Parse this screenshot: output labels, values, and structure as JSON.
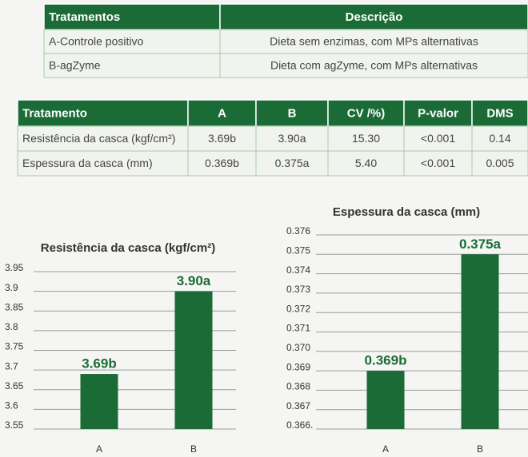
{
  "tables": {
    "treatments": {
      "header": [
        "Tratamentos",
        "Descrição"
      ],
      "rows": [
        [
          "A-Controle positivo",
          "Dieta sem enzimas, com MPs alternativas"
        ],
        [
          "B-agZyme",
          "Dieta com agZyme, com MPs alternativas"
        ]
      ]
    },
    "results": {
      "header": [
        "Tratamento",
        "A",
        "B",
        "CV /%)",
        "P-valor",
        "DMS"
      ],
      "rows": [
        [
          "Resistência da casca (kgf/cm²)",
          "3.69b",
          "3.90a",
          "15.30",
          "<0.001",
          "0.14"
        ],
        [
          "Espessura da casca (mm)",
          "0.369b",
          "0.375a",
          "5.40",
          "<0.001",
          "0.005"
        ]
      ]
    }
  },
  "chart_data": [
    {
      "type": "bar",
      "title": "Resistência da casca (kgf/cm²)",
      "categories": [
        "A",
        "B"
      ],
      "values": [
        3.69,
        3.9
      ],
      "value_labels": [
        "3.69b",
        "3.90a"
      ],
      "color": "#1b6b36",
      "ylim": [
        3.55,
        3.95
      ],
      "yticks": [
        3.55,
        3.6,
        3.65,
        3.7,
        3.75,
        3.8,
        3.85,
        3.9,
        3.95
      ],
      "grid": true
    },
    {
      "type": "bar",
      "title": "Espessura da casca (mm)",
      "categories": [
        "A",
        "B"
      ],
      "values": [
        0.369,
        0.375
      ],
      "value_labels": [
        "0.369b",
        "0.375a"
      ],
      "color": "#1b6b36",
      "ylim": [
        0.366,
        0.376
      ],
      "yticks": [
        {
          "value": 0.366,
          "label": "0.366."
        },
        0.367,
        0.368,
        0.369,
        {
          "value": 0.37,
          "label": "0.370"
        },
        0.371,
        0.372,
        0.373,
        0.374,
        0.375,
        0.376
      ],
      "grid": true
    }
  ]
}
